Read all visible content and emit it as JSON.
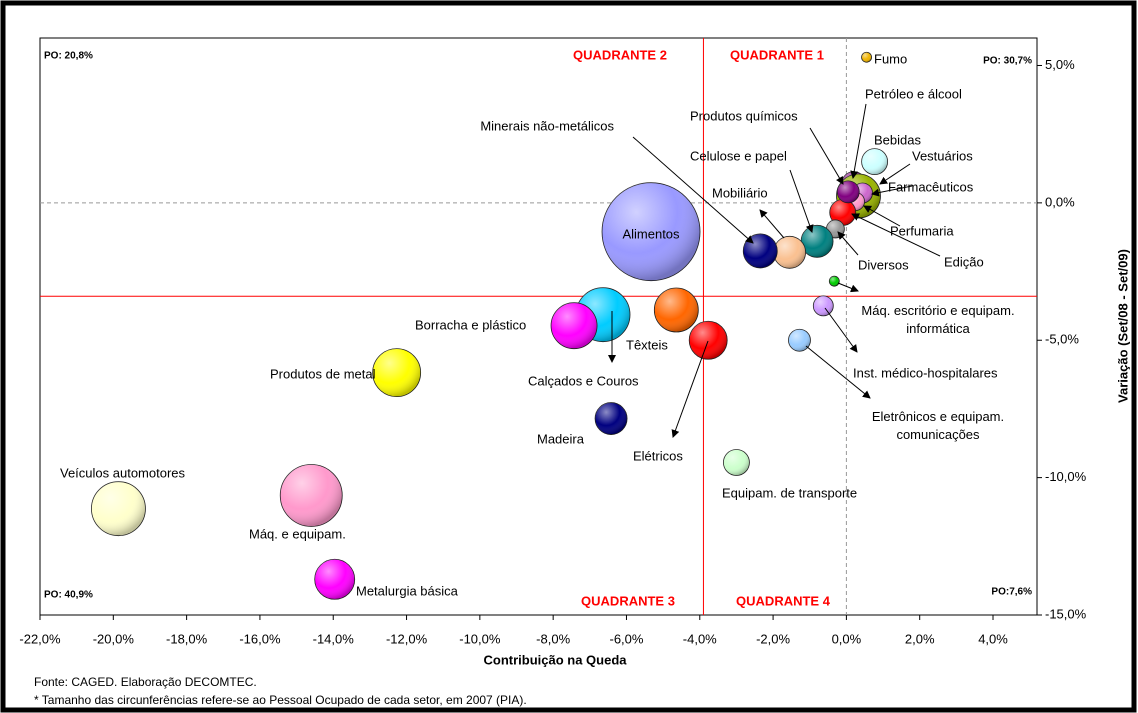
{
  "chart_data": {
    "type": "bubble",
    "x_label": "Contribuição na Queda",
    "y_label": "Variação (Set/08 - Set/09)",
    "labels": [
      "Fumo",
      "Petróleo e álcool",
      "Bebidas",
      "Vestuários",
      "Farmacêuticos",
      "Perfumaria",
      "Edição",
      "Diversos",
      "Celulose e papel",
      "Produtos químicos",
      "Mobiliário",
      "Minerais não-metálicos",
      "Alimentos",
      "Máq. escritório e equipam. informática",
      "Inst. médico-hospitalares",
      "Eletrônicos e equipam. comunicações",
      "Têxteis",
      "Elétricos",
      "Calçados e Couros",
      "Borracha e plástico",
      "Produtos de metal",
      "Madeira",
      "Equipam. de transporte",
      "Veículos automotores",
      "Máq. e equipam.",
      "Metalurgia básica"
    ],
    "x": [
      0.55,
      0.2,
      0.77,
      0.33,
      0.44,
      0.25,
      -0.1,
      -0.3,
      -0.8,
      0.05,
      -1.55,
      -2.35,
      -5.33,
      -0.33,
      -0.63,
      -1.28,
      -4.64,
      -3.77,
      -6.64,
      -7.43,
      -12.27,
      -6.42,
      -3.0,
      -19.86,
      -14.6,
      -13.96
    ],
    "values": [
      5.3,
      0.7,
      1.5,
      0.25,
      0.36,
      0.05,
      -0.35,
      -0.95,
      -1.4,
      0.4,
      -1.8,
      -1.75,
      -1.05,
      -2.85,
      -3.75,
      -5.0,
      -3.9,
      -5.0,
      -4.07,
      -4.47,
      -6.18,
      -7.85,
      -9.45,
      -11.13,
      -10.65,
      -13.7
    ],
    "sizes": [
      25,
      144,
      169,
      484,
      100,
      81,
      169,
      81,
      256,
      121,
      256,
      289,
      2401,
      25,
      100,
      121,
      484,
      361,
      729,
      529,
      576,
      256,
      169,
      729,
      961,
      400
    ],
    "colors": [
      "#f0b400",
      "#993399",
      "#ccffff",
      "#99b300",
      "#cc66cc",
      "#ff99cc",
      "#ff0000",
      "#999999",
      "#008080",
      "#800080",
      "#fac090",
      "#000080",
      "#9999ff",
      "#00cc00",
      "#cc99ff",
      "#99ccff",
      "#ff6600",
      "#ff0000",
      "#00ccff",
      "#ff00ff",
      "#ffff00",
      "#000080",
      "#ccffcc",
      "#ffffcc",
      "#ff99cc",
      "#ff00ff"
    ],
    "xlim": [
      -22,
      5.2
    ],
    "ylim": [
      -15,
      6
    ],
    "xticks": [
      {
        "value": -22,
        "label": "-22,0%"
      },
      {
        "value": -20,
        "label": "-20,0%"
      },
      {
        "value": -18,
        "label": "-18,0%"
      },
      {
        "value": -16,
        "label": "-16,0%"
      },
      {
        "value": -14,
        "label": "-14,0%"
      },
      {
        "value": -12,
        "label": "-12,0%"
      },
      {
        "value": -10,
        "label": "-10,0%"
      },
      {
        "value": -8,
        "label": "-8,0%"
      },
      {
        "value": -6,
        "label": "-6,0%"
      },
      {
        "value": -4,
        "label": "-4,0%"
      },
      {
        "value": -2,
        "label": "-2,0%"
      },
      {
        "value": 0,
        "label": "0,0%"
      },
      {
        "value": 2,
        "label": "2,0%"
      },
      {
        "value": 4,
        "label": "4,0%"
      }
    ],
    "yticks": [
      {
        "value": 5,
        "label": "5,0%"
      },
      {
        "value": 0,
        "label": "0,0%"
      },
      {
        "value": -5,
        "label": "-5,0%"
      },
      {
        "value": -10,
        "label": "-10,0%"
      },
      {
        "value": -15,
        "label": "-15,0%"
      }
    ],
    "reference_lines": {
      "x": -3.9,
      "y": -3.4,
      "color": "#ff0000"
    },
    "dashed_lines": {
      "x": 0,
      "y": 0,
      "color": "#999999"
    },
    "annotations": [
      "QUADRANTE 2",
      "QUADRANTE 1",
      "QUADRANTE 3",
      "QUADRANTE 4",
      "PO: 20,8%",
      "PO: 30,7%",
      "PO: 40,9%",
      "PO:7,6%"
    ],
    "notes": [
      "Fonte: CAGED. Elaboração DECOMTEC.",
      "* Tamanho das circunferências refere-se ao Pessoal Ocupado de cada setor, em 2007 (PIA)."
    ]
  }
}
